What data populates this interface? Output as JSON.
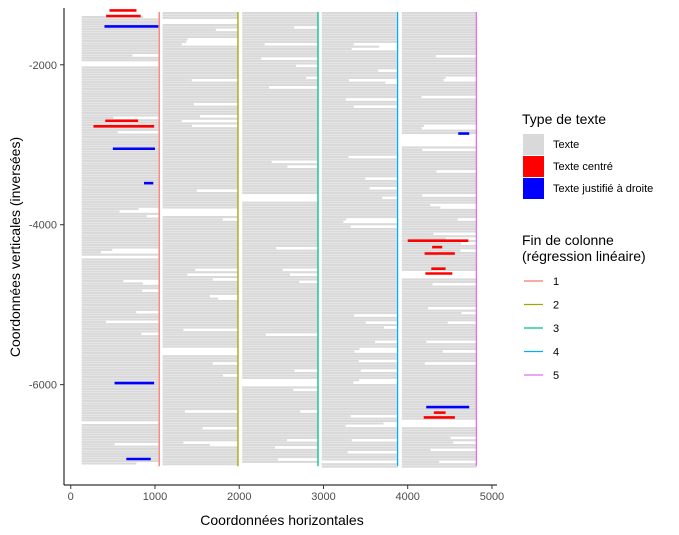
{
  "chart_data": {
    "type": "scatter",
    "xlabel": "Coordonnées horizontales",
    "ylabel": "Coordonnées verticales (inversées)",
    "xlim": [
      -80,
      5060
    ],
    "ylim": [
      -7255,
      -1290
    ],
    "x_ticks": [
      0,
      1000,
      2000,
      3000,
      4000,
      5000
    ],
    "x_tick_labels": [
      "0",
      "1000",
      "2000",
      "3000",
      "4000",
      "5000"
    ],
    "y_ticks": [
      -2000,
      -4000,
      -6000
    ],
    "y_tick_labels": [
      "-2000",
      "-4000",
      "-6000"
    ],
    "grid": false,
    "legend_position": "right",
    "text_type_legend": {
      "title": "Type de texte",
      "entries": [
        {
          "label": "Texte",
          "color": "#d9d9d9"
        },
        {
          "label": "Texte centré",
          "color": "#ff0000"
        },
        {
          "label": "Texte justifié à droite",
          "color": "#0000ff"
        }
      ]
    },
    "column_end_legend": {
      "title_line1": "Fin de colonne",
      "title_line2": "(régression linéaire)",
      "entries": [
        {
          "label": "1",
          "color": "#f8766d"
        },
        {
          "label": "2",
          "color": "#a3a500"
        },
        {
          "label": "3",
          "color": "#00bf7d"
        },
        {
          "label": "4",
          "color": "#00b0f6"
        },
        {
          "label": "5",
          "color": "#e76bf3"
        }
      ]
    },
    "column_end_lines": [
      {
        "name": "1",
        "x": 1050,
        "y_from": -1340,
        "y_to": -7020
      },
      {
        "name": "2",
        "x": 1985,
        "y_from": -1340,
        "y_to": -7020
      },
      {
        "name": "3",
        "x": 2935,
        "y_from": -1340,
        "y_to": -7020
      },
      {
        "name": "4",
        "x": 3880,
        "y_from": -1340,
        "y_to": -7020
      },
      {
        "name": "5",
        "x": 4815,
        "y_from": -1340,
        "y_to": -7020
      }
    ],
    "text_columns": [
      {
        "x_start": 130,
        "x_end": 1040,
        "y_start": -1390,
        "y_end": -7000
      },
      {
        "x_start": 1090,
        "x_end": 1985,
        "y_start": -1340,
        "y_end": -7000
      },
      {
        "x_start": 2035,
        "x_end": 2935,
        "y_start": -1340,
        "y_end": -6980
      },
      {
        "x_start": 2980,
        "x_end": 3880,
        "y_start": -1340,
        "y_end": -7020
      },
      {
        "x_start": 3930,
        "x_end": 4815,
        "y_start": -1340,
        "y_end": -7020
      }
    ],
    "text_gaps": [
      {
        "x_start": 1090,
        "x_end": 1985,
        "y_from": -1420,
        "y_to": -1480
      },
      {
        "x_start": 130,
        "x_end": 1040,
        "y_from": -1960,
        "y_to": -2000
      },
      {
        "x_start": 1090,
        "x_end": 1985,
        "y_from": -3800,
        "y_to": -3880
      },
      {
        "x_start": 2035,
        "x_end": 2935,
        "y_from": -3600,
        "y_to": -3690
      },
      {
        "x_start": 3930,
        "x_end": 4815,
        "y_from": -2860,
        "y_to": -3000
      },
      {
        "x_start": 3930,
        "x_end": 4815,
        "y_from": -4580,
        "y_to": -4660
      },
      {
        "x_start": 1090,
        "x_end": 1985,
        "y_from": -5540,
        "y_to": -5620
      },
      {
        "x_start": 2035,
        "x_end": 2935,
        "y_from": -5920,
        "y_to": -6000
      },
      {
        "x_start": 3930,
        "x_end": 4815,
        "y_from": -6440,
        "y_to": -6520
      },
      {
        "x_start": 130,
        "x_end": 1040,
        "y_from": -6440,
        "y_to": -6490
      },
      {
        "x_start": 130,
        "x_end": 1040,
        "y_from": -4380,
        "y_to": -4420
      },
      {
        "x_start": 2980,
        "x_end": 3880,
        "y_from": -6930,
        "y_to": -6960
      }
    ],
    "centered_segments": [
      {
        "x1": 460,
        "x2": 780,
        "y": -1320
      },
      {
        "x1": 420,
        "x2": 830,
        "y": -1390
      },
      {
        "x1": 410,
        "x2": 800,
        "y": -2700
      },
      {
        "x1": 270,
        "x2": 990,
        "y": -2770
      },
      {
        "x1": 4000,
        "x2": 4720,
        "y": -4200
      },
      {
        "x1": 4290,
        "x2": 4410,
        "y": -4280
      },
      {
        "x1": 4200,
        "x2": 4560,
        "y": -4360
      },
      {
        "x1": 4280,
        "x2": 4450,
        "y": -4550
      },
      {
        "x1": 4210,
        "x2": 4530,
        "y": -4610
      },
      {
        "x1": 4310,
        "x2": 4450,
        "y": -6350
      },
      {
        "x1": 4190,
        "x2": 4560,
        "y": -6410
      }
    ],
    "right_justified_segments": [
      {
        "x1": 400,
        "x2": 1040,
        "y": -1520
      },
      {
        "x1": 500,
        "x2": 1000,
        "y": -3050
      },
      {
        "x1": 870,
        "x2": 980,
        "y": -3480
      },
      {
        "x1": 520,
        "x2": 990,
        "y": -5980
      },
      {
        "x1": 660,
        "x2": 950,
        "y": -6930
      },
      {
        "x1": 4600,
        "x2": 4730,
        "y": -2860
      },
      {
        "x1": 4220,
        "x2": 4730,
        "y": -6280
      }
    ]
  }
}
